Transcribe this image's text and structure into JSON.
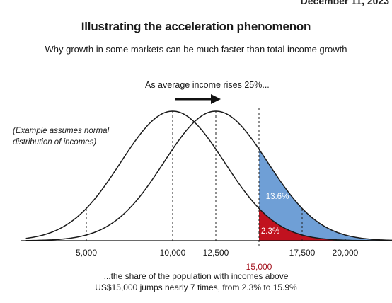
{
  "header": {
    "date_fragment": "December 11, 2023",
    "title": "Illustrating the acceleration phenomenon",
    "subtitle": "Why growth in some markets can be much faster than total income growth"
  },
  "annotations": {
    "arrow_caption": "As average income rises 25%...",
    "note_line1": "(Example assumes normal",
    "note_line2": "distribution of incomes)",
    "blue_label": "13.6%",
    "red_label": "2.3%",
    "footnote_line1": "...the share of the population with incomes above",
    "footnote_line2": "US$15,000 jumps nearly 7 times, from 2.3% to 15.9%"
  },
  "axis": {
    "ticks": [
      "5,000",
      "10,000",
      "12,500",
      "17,500",
      "20,000"
    ],
    "highlight_tick": "15,000"
  },
  "colors": {
    "blue": "#6f9fd6",
    "red": "#c1121f",
    "red_label": "#a3111c",
    "curve": "#1a1a1a"
  },
  "chart_data": {
    "type": "area",
    "series": [
      {
        "mean": 10000
      },
      {
        "mean": 12500
      }
    ],
    "threshold": 15000,
    "shaded_shares": {
      "red": "2.3%",
      "blue": "13.6%",
      "total_after": "15.9%"
    }
  }
}
